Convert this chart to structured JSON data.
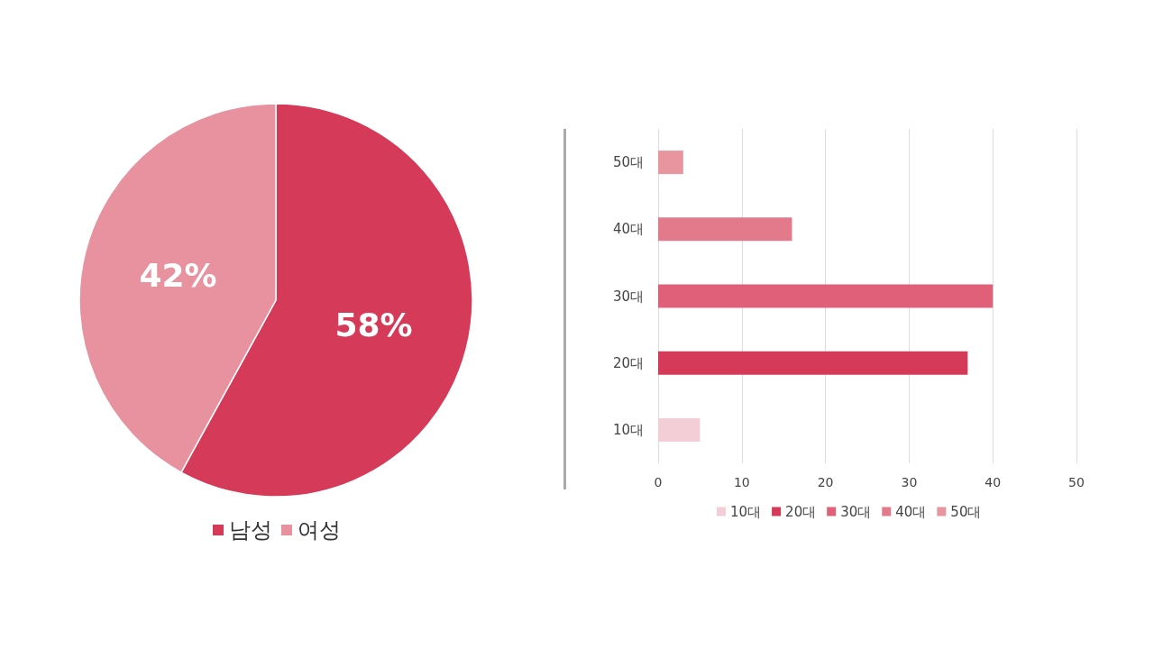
{
  "chart_data": [
    {
      "type": "pie",
      "categories": [
        "남성",
        "여성"
      ],
      "values": [
        58,
        42
      ],
      "colors": [
        "#d63a59",
        "#e8919f"
      ],
      "value_labels": [
        "58%",
        "42%"
      ],
      "legend": "bottom"
    },
    {
      "type": "bar",
      "orientation": "horizontal",
      "stacked": true,
      "categories": [
        "50대",
        "40대",
        "30대",
        "20대",
        "10대"
      ],
      "series": [
        {
          "name": "10대",
          "color": "#f4ced6",
          "values": [
            null,
            null,
            null,
            null,
            5
          ]
        },
        {
          "name": "20대",
          "color": "#d63a59",
          "values": [
            null,
            null,
            null,
            37,
            null
          ]
        },
        {
          "name": "30대",
          "color": "#e0607a",
          "values": [
            null,
            null,
            40,
            null,
            null
          ]
        },
        {
          "name": "40대",
          "color": "#e27a8c",
          "values": [
            null,
            16,
            null,
            null,
            null
          ]
        },
        {
          "name": "50대",
          "color": "#e8959f",
          "values": [
            3,
            null,
            null,
            null,
            null
          ]
        }
      ],
      "xlim": [
        0,
        50
      ],
      "xticks": [
        0,
        10,
        20,
        30,
        40,
        50
      ],
      "grid": "x",
      "legend": "bottom"
    }
  ]
}
